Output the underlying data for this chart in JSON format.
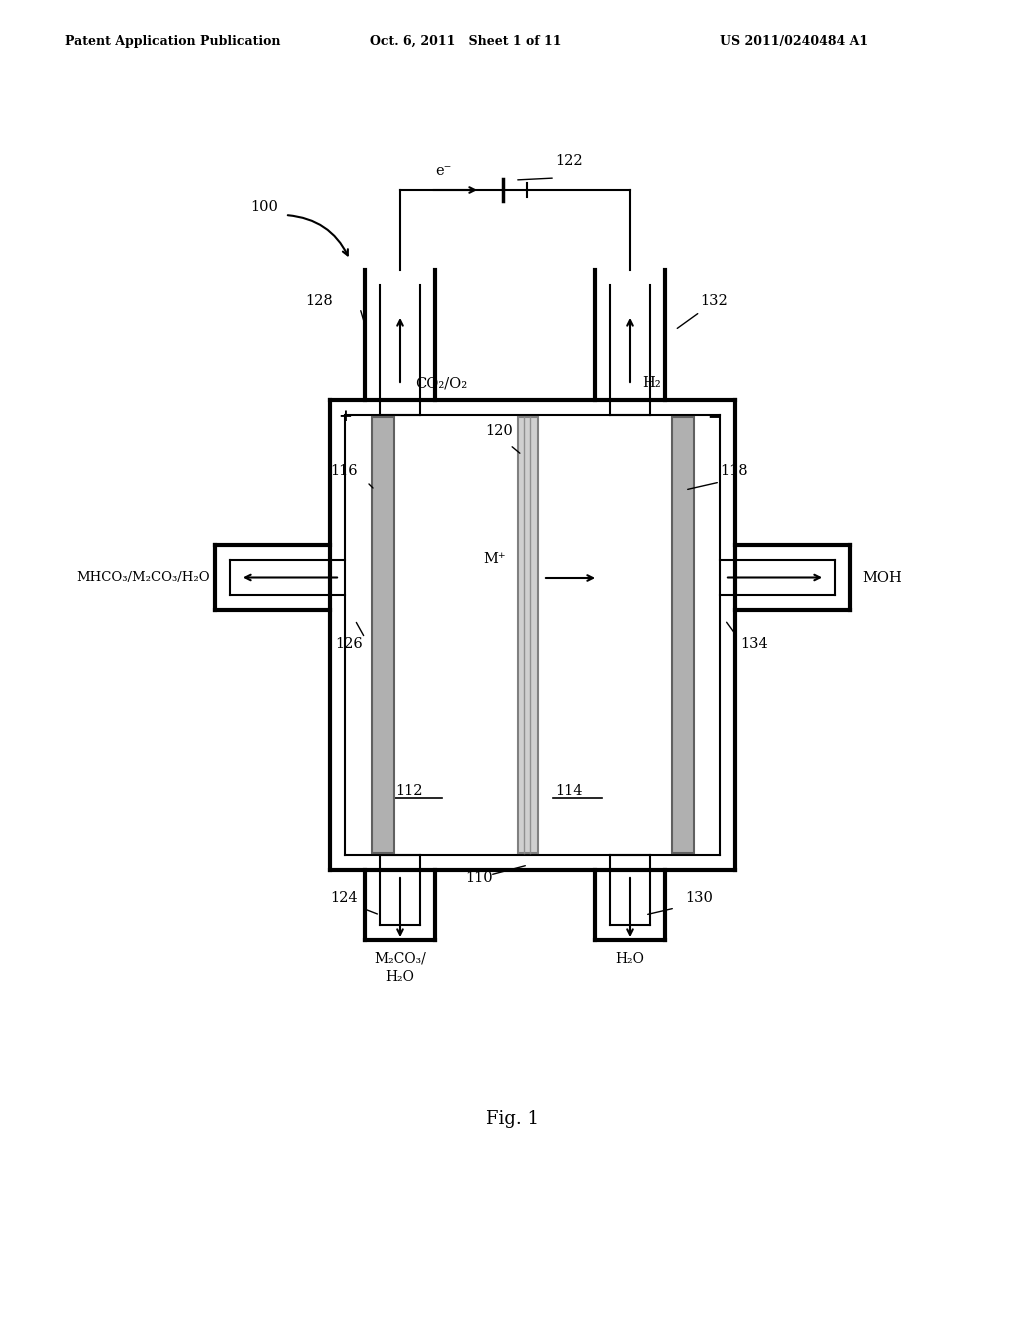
{
  "bg_color": "#ffffff",
  "header_left": "Patent Application Publication",
  "header_mid": "Oct. 6, 2011   Sheet 1 of 11",
  "header_right": "US 2011/0240484 A1",
  "fig_label": "Fig. 1",
  "label_100": "100",
  "label_122": "122",
  "label_128": "128",
  "label_132": "132",
  "label_116": "116",
  "label_118": "118",
  "label_120": "120",
  "label_112": "112",
  "label_114": "114",
  "label_110": "110",
  "label_124": "124",
  "label_126": "126",
  "label_130": "130",
  "label_134": "134",
  "text_co2o2": "CO₂/O₂",
  "text_h2": "H₂",
  "text_eminus": "e⁻",
  "text_mplus": "M⁺",
  "text_mhco3": "MHCO₃/M₂CO₃/H₂O",
  "text_moh": "MOH",
  "text_m2co3": "M₂CO₃/\nH₂O",
  "text_h2o": "H₂O",
  "text_plus": "+",
  "text_minus": "−"
}
